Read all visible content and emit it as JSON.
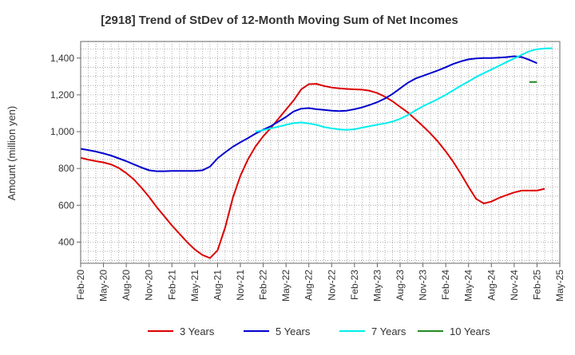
{
  "chart_data": {
    "type": "line",
    "title": "[2918]  Trend of StDev of 12-Month Moving Sum of Net Incomes",
    "xlabel": "",
    "ylabel": "Amount (million yen)",
    "ylim": [
      285,
      1490
    ],
    "y_ticks": [
      400,
      600,
      800,
      1000,
      1200,
      1400
    ],
    "y_tick_labels": [
      "400",
      "600",
      "800",
      "1,000",
      "1,200",
      "1,400"
    ],
    "x_tick_labels": [
      "Feb-20",
      "May-20",
      "Aug-20",
      "Nov-20",
      "Feb-21",
      "May-21",
      "Aug-21",
      "Nov-21",
      "Feb-22",
      "May-22",
      "Aug-22",
      "Nov-22",
      "Feb-23",
      "May-23",
      "Aug-23",
      "Nov-23",
      "Feb-24",
      "May-24",
      "Aug-24",
      "Nov-24",
      "Feb-25",
      "May-25"
    ],
    "x_range": [
      "Feb-20",
      "May-25"
    ],
    "grid": true,
    "legend_position": "bottom",
    "series": [
      {
        "name": "3 Years",
        "color": "#dd0000",
        "start": "Feb-20",
        "values": [
          858,
          848,
          840,
          833,
          822,
          803,
          775,
          740,
          695,
          645,
          590,
          540,
          490,
          445,
          400,
          360,
          330,
          313,
          355,
          480,
          640,
          760,
          850,
          920,
          975,
          1020,
          1070,
          1120,
          1170,
          1230,
          1258,
          1260,
          1248,
          1240,
          1235,
          1232,
          1230,
          1228,
          1222,
          1210,
          1190,
          1165,
          1135,
          1105,
          1068,
          1030,
          990,
          945,
          893,
          835,
          770,
          700,
          635,
          610,
          620,
          640,
          655,
          670,
          680,
          680,
          680,
          690
        ]
      },
      {
        "name": "5 Years",
        "color": "#0000cc",
        "start": "Feb-20",
        "values": [
          907,
          900,
          892,
          882,
          870,
          855,
          840,
          822,
          805,
          790,
          785,
          785,
          787,
          787,
          787,
          787,
          790,
          810,
          855,
          888,
          918,
          942,
          965,
          990,
          1010,
          1030,
          1055,
          1080,
          1110,
          1125,
          1128,
          1122,
          1118,
          1114,
          1112,
          1114,
          1122,
          1132,
          1145,
          1160,
          1180,
          1205,
          1235,
          1265,
          1288,
          1303,
          1318,
          1333,
          1350,
          1368,
          1382,
          1393,
          1398,
          1400,
          1400,
          1402,
          1405,
          1410,
          1405,
          1390,
          1372
        ]
      },
      {
        "name": "7 Years",
        "color": "#00eeee",
        "start": "Jan-22",
        "values": [
          1000,
          1008,
          1018,
          1027,
          1037,
          1046,
          1050,
          1045,
          1037,
          1025,
          1018,
          1012,
          1010,
          1013,
          1022,
          1030,
          1038,
          1045,
          1055,
          1070,
          1090,
          1115,
          1138,
          1158,
          1178,
          1200,
          1225,
          1250,
          1273,
          1297,
          1318,
          1338,
          1358,
          1378,
          1398,
          1418,
          1437,
          1448,
          1452,
          1453
        ]
      },
      {
        "name": "10 Years",
        "color": "#228b22",
        "start": "Jan-25",
        "values": [
          1270,
          1270
        ]
      }
    ]
  }
}
